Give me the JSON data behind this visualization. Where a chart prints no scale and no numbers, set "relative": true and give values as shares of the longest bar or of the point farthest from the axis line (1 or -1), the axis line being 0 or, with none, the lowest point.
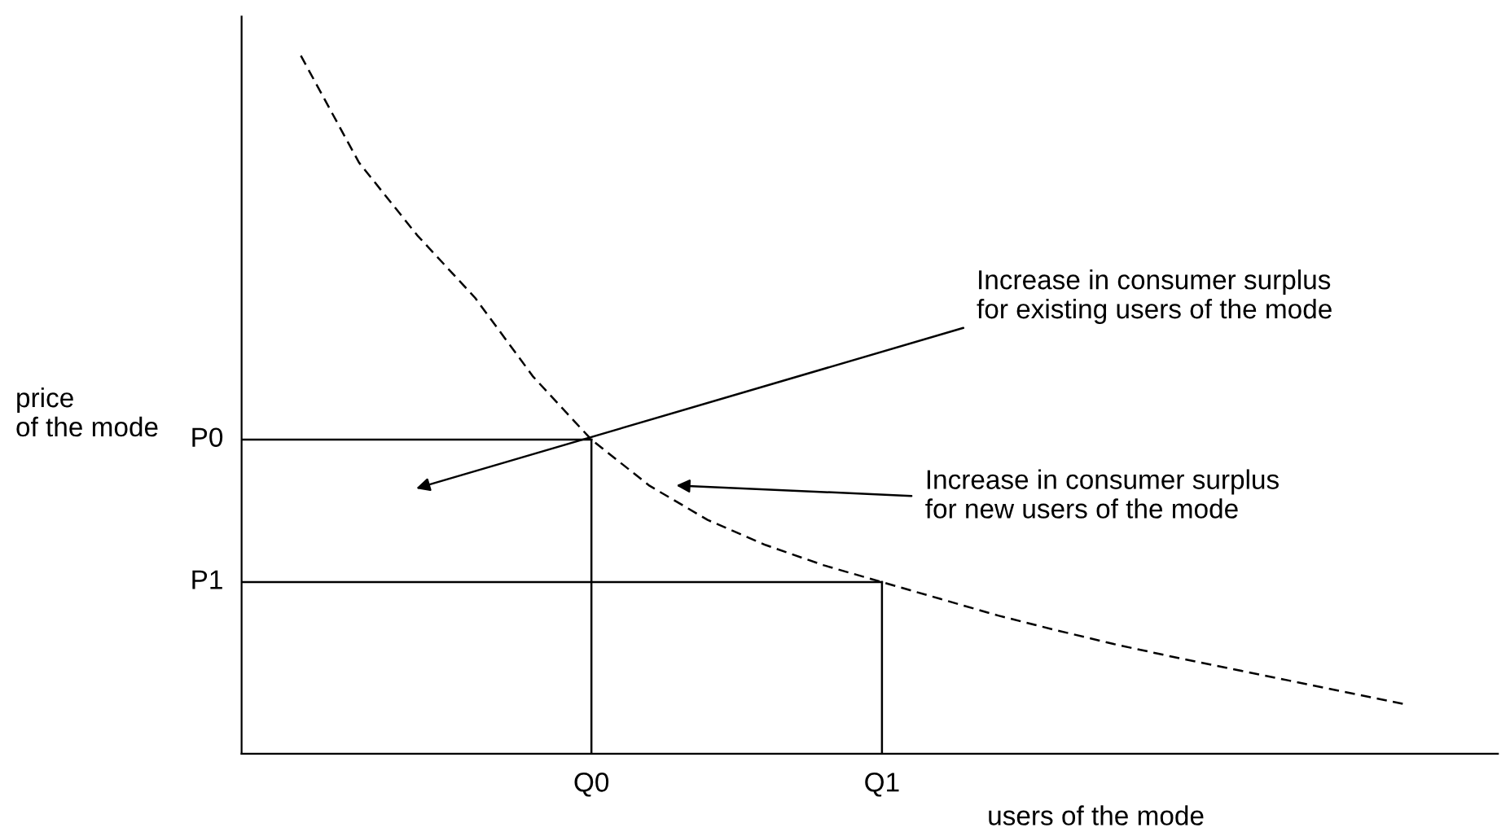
{
  "chart_data": {
    "type": "line",
    "relative": true,
    "xlabel": "users of the mode",
    "ylabel": "price\nof the mode",
    "marker": "none",
    "categories": [
      null,
      null,
      null,
      null,
      null,
      null,
      null,
      null,
      null,
      null,
      null,
      null,
      null,
      null,
      null,
      null,
      null,
      null,
      null,
      null
    ],
    "series": [
      {
        "color": "#000000",
        "line_style": "dashed",
        "values": [
          1.0,
          0.847,
          0.743,
          0.653,
          0.54,
          0.45,
          0.384,
          0.335,
          0.299,
          0.27,
          0.246,
          0.222,
          0.198,
          0.177,
          0.157,
          0.139,
          0.122,
          0.105,
          0.088,
          0.071
        ]
      }
    ],
    "ref_lines": [
      {
        "axis": "y",
        "value": 0.45,
        "label": "P0",
        "color": "#000000",
        "line_style": "solid"
      },
      {
        "axis": "y",
        "value": 0.246,
        "label": "P1",
        "color": "#000000",
        "line_style": "solid"
      }
    ],
    "annotations": [
      "Increase in consumer surplus\nfor existing users of the mode",
      "Increase in consumer surplus\nfor new users of the mode",
      "Q0",
      "Q1"
    ]
  }
}
